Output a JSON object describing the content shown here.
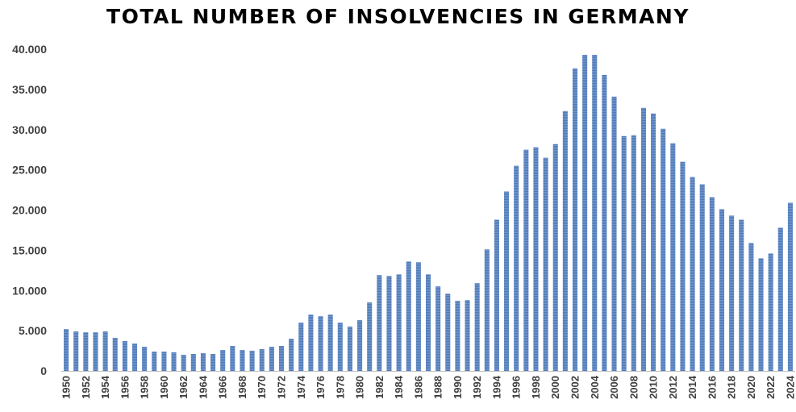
{
  "chart_data": {
    "type": "bar",
    "title": "TOTAL NUMBER OF INSOLVENCIES IN GERMANY",
    "xlabel": "",
    "ylabel": "",
    "ylim": [
      0,
      40000
    ],
    "yticks": [
      0,
      5000,
      10000,
      15000,
      20000,
      25000,
      30000,
      35000,
      40000
    ],
    "ytick_labels": [
      "0",
      "5.000",
      "10.000",
      "15.000",
      "20.000",
      "25.000",
      "30.000",
      "35.000",
      "40.000"
    ],
    "grid": false,
    "bar_color": "#5b86c5",
    "categories": [
      "1950",
      "1951",
      "1952",
      "1953",
      "1954",
      "1955",
      "1956",
      "1957",
      "1958",
      "1959",
      "1960",
      "1961",
      "1962",
      "1963",
      "1964",
      "1965",
      "1966",
      "1967",
      "1968",
      "1969",
      "1970",
      "1971",
      "1972",
      "1973",
      "1974",
      "1975",
      "1976",
      "1977",
      "1978",
      "1979",
      "1980",
      "1981",
      "1982",
      "1983",
      "1984",
      "1985",
      "1986",
      "1987",
      "1988",
      "1989",
      "1990",
      "1991",
      "1992",
      "1993",
      "1994",
      "1995",
      "1996",
      "1997",
      "1998",
      "1999",
      "2000",
      "2001",
      "2002",
      "2003",
      "2004",
      "2005",
      "2006",
      "2007",
      "2008",
      "2009",
      "2010",
      "2011",
      "2012",
      "2013",
      "2014",
      "2015",
      "2016",
      "2017",
      "2018",
      "2019",
      "2020",
      "2021",
      "2022",
      "2023",
      "2024"
    ],
    "xtick_labels": [
      "1950",
      "",
      "1952",
      "",
      "1954",
      "",
      "1956",
      "",
      "1958",
      "",
      "1960",
      "",
      "1962",
      "",
      "1964",
      "",
      "1966",
      "",
      "1968",
      "",
      "1970",
      "",
      "1972",
      "",
      "1974",
      "",
      "1976",
      "",
      "1978",
      "",
      "1980",
      "",
      "1982",
      "",
      "1984",
      "",
      "1986",
      "",
      "1988",
      "",
      "1990",
      "",
      "1992",
      "",
      "1994",
      "",
      "1996",
      "",
      "1998",
      "",
      "2000",
      "",
      "2002",
      "",
      "2004",
      "",
      "2006",
      "",
      "2008",
      "",
      "2010",
      "",
      "2012",
      "",
      "2014",
      "",
      "2016",
      "",
      "2018",
      "",
      "2020",
      "",
      "2022",
      "",
      "2024"
    ],
    "values": [
      5200,
      4900,
      4800,
      4800,
      4900,
      4100,
      3700,
      3400,
      3000,
      2400,
      2400,
      2300,
      2000,
      2100,
      2200,
      2100,
      2600,
      3100,
      2600,
      2500,
      2700,
      3000,
      3100,
      4000,
      6000,
      7000,
      6800,
      7000,
      6000,
      5500,
      6300,
      8500,
      11900,
      11800,
      12000,
      13600,
      13500,
      12000,
      10500,
      9600,
      8700,
      8800,
      10900,
      15100,
      18800,
      22300,
      25500,
      27500,
      27800,
      26500,
      28200,
      32300,
      37600,
      39300,
      39300,
      36800,
      34100,
      29200,
      29300,
      32700,
      32000,
      30100,
      28300,
      26000,
      24100,
      23200,
      21600,
      20100,
      19300,
      18800,
      15900,
      14000,
      14600,
      17800,
      20900
    ]
  }
}
